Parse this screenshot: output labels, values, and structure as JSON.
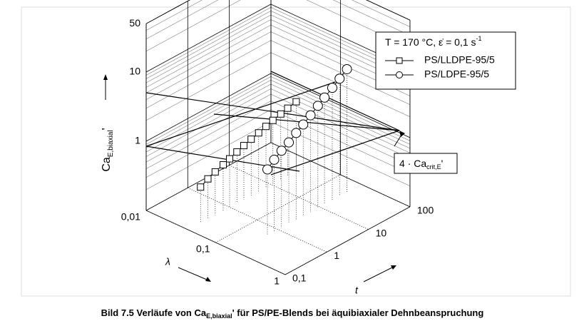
{
  "chart_data": {
    "type": "scatter3d",
    "caption": {
      "main": "Bild 7.5  Verläufe von Ca",
      "sub": "E,biaxial",
      "suffix": "' für PS/PE-Blends bei äquibiaxialer Dehnbeanspruchung"
    },
    "z_label": {
      "main": "Ca",
      "sub": "E,biaxial",
      "suffix": "'"
    },
    "x_label": "λ",
    "y_label": "t",
    "legend_title": {
      "main": "T = 170 °C, ε̇ = 0,1 s",
      "sup": "-1"
    },
    "annotation": {
      "main": "4 · Ca",
      "sub": "crit,E",
      "suffix": "'"
    },
    "lambdalim": [
      0.01,
      1
    ],
    "lambdaticks": [
      {
        "value": 0.01,
        "label": "0,01"
      },
      {
        "value": 0.1,
        "label": "0,1"
      },
      1
    ],
    "tlim": [
      0.1,
      100
    ],
    "tticks": [
      {
        "value": 0.1,
        "label": "0,1"
      },
      1,
      10,
      100
    ],
    "zlim": [
      0.1,
      50
    ],
    "zticks": [
      1,
      10,
      50
    ],
    "log": true,
    "grid": true,
    "series": [
      {
        "name": "PS/LLDPE-95/5",
        "marker": "square",
        "color": "#000000",
        "lambda": 0.04,
        "x": [
          0.2,
          0.3,
          0.45,
          0.7,
          1,
          1.5,
          2.2,
          3.3,
          5,
          7.5,
          11,
          17,
          25,
          40
        ],
        "values": [
          0.33,
          0.38,
          0.42,
          0.46,
          0.5,
          0.55,
          0.6,
          0.65,
          0.7,
          0.76,
          0.82,
          0.88,
          0.94,
          1.0
        ]
      },
      {
        "name": "PS/LDPE-95/5",
        "marker": "circle",
        "color": "#000000",
        "lambda": 0.2,
        "x": [
          0.55,
          0.8,
          1.2,
          1.8,
          2.7,
          4,
          6,
          9,
          13,
          20,
          30,
          45
        ],
        "values": [
          0.9,
          1.1,
          1.3,
          1.5,
          1.8,
          2.1,
          2.5,
          3,
          3.5,
          4.2,
          5,
          6
        ]
      }
    ]
  }
}
